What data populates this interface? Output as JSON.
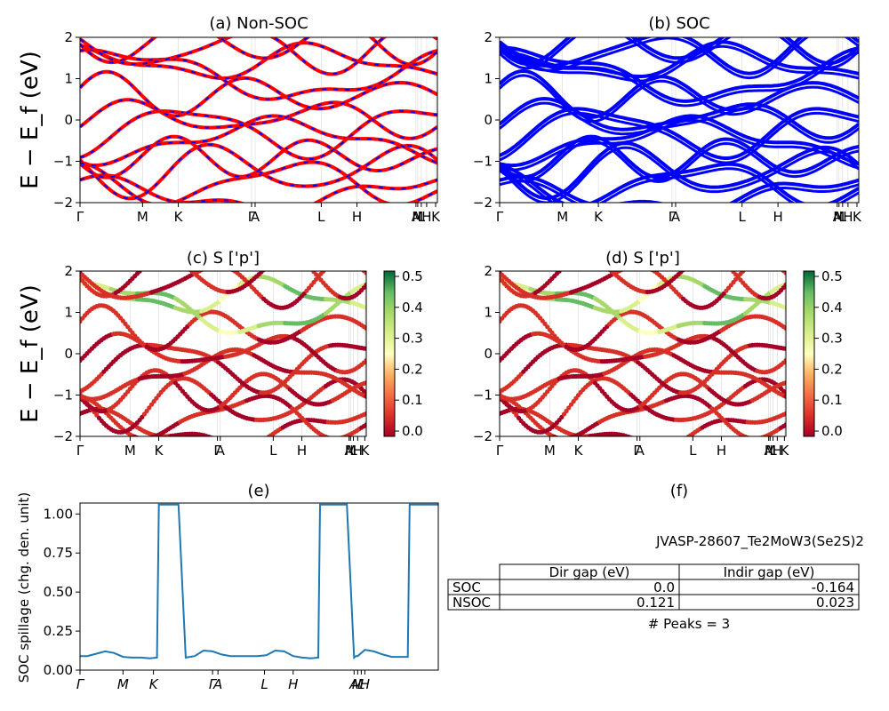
{
  "figure_id": "JVASP-28607_Te2MoW3(Se2S)2",
  "chart_data": [
    {
      "type": "line",
      "title": "(a) Non-SOC",
      "ylabel": "E − E_f (eV)",
      "ylim": [
        -2,
        2
      ],
      "yticks": [
        "2",
        "1",
        "0",
        "−1",
        "−2"
      ],
      "xticks": [
        "Γ",
        "M",
        "K",
        "Γ",
        "A",
        "L",
        "H",
        "A",
        "M",
        "L",
        "H",
        "K"
      ],
      "series_colors": [
        "#ff0000",
        "#0000ff"
      ],
      "note_series": [
        "spin-up (red)",
        "spin-down (blue dashed)"
      ]
    },
    {
      "type": "line",
      "title": "(b) SOC",
      "ylim": [
        -2,
        2
      ],
      "yticks": [
        "2",
        "1",
        "0",
        "−1",
        "−2"
      ],
      "xticks": [
        "Γ",
        "M",
        "K",
        "Γ",
        "A",
        "L",
        "H",
        "A",
        "M",
        "L",
        "H",
        "K"
      ],
      "series_colors": [
        "#0000ff"
      ]
    },
    {
      "type": "scatter",
      "title": "(c)  S ['p']",
      "ylabel": "E − E_f (eV)",
      "ylim": [
        -2,
        2
      ],
      "yticks": [
        "2",
        "1",
        "0",
        "−1",
        "−2"
      ],
      "xticks": [
        "Γ",
        "M",
        "K",
        "Γ",
        "A",
        "L",
        "H",
        "A",
        "M",
        "L",
        "H",
        "K"
      ],
      "colorbar": {
        "min": 0.0,
        "max": 0.5,
        "ticks": [
          "0.5",
          "0.4",
          "0.3",
          "0.2",
          "0.1",
          "0.0"
        ],
        "colormap": "RdYlGn"
      }
    },
    {
      "type": "scatter",
      "title": "(d) S ['p']",
      "ylim": [
        -2,
        2
      ],
      "yticks": [
        "2",
        "1",
        "0",
        "−1",
        "−2"
      ],
      "xticks": [
        "Γ",
        "M",
        "K",
        "Γ",
        "A",
        "L",
        "H",
        "A",
        "M",
        "L",
        "H",
        "K"
      ],
      "colorbar": {
        "min": 0.0,
        "max": 0.5,
        "ticks": [
          "0.5",
          "0.4",
          "0.3",
          "0.2",
          "0.1",
          "0.0"
        ],
        "colormap": "RdYlGn"
      }
    },
    {
      "type": "line",
      "title": "(e)",
      "ylabel": "SOC spillage (chg. den. unit)",
      "ylim": [
        0,
        1.07
      ],
      "yticks": [
        "1.00",
        "0.75",
        "0.50",
        "0.25",
        "0.00"
      ],
      "xticks": [
        "Γ",
        "M",
        "K",
        "Γ",
        "A",
        "L",
        "H",
        "A",
        "M",
        "L",
        "H"
      ],
      "series": [
        {
          "color": "#1f77b4",
          "x": [
            0,
            8,
            18,
            28,
            38,
            48,
            58,
            68,
            78,
            86,
            88,
            90,
            98,
            110,
            118,
            128,
            138,
            148,
            158,
            168,
            178,
            188,
            198,
            208,
            218,
            228,
            238,
            248,
            258,
            266,
            268,
            270,
            278,
            288,
            298,
            306,
            308,
            310,
            318,
            328,
            338,
            348,
            358,
            366,
            368,
            370,
            380,
            388,
            390,
            392,
            400
          ],
          "values": [
            0.09,
            0.09,
            0.105,
            0.12,
            0.11,
            0.085,
            0.08,
            0.08,
            0.075,
            0.08,
            1.06,
            1.06,
            1.06,
            1.06,
            0.08,
            0.09,
            0.125,
            0.12,
            0.1,
            0.09,
            0.09,
            0.09,
            0.09,
            0.095,
            0.125,
            0.12,
            0.09,
            0.08,
            0.075,
            0.08,
            1.06,
            1.06,
            1.06,
            1.06,
            1.06,
            0.08,
            0.09,
            0.09,
            0.13,
            0.12,
            0.1,
            0.085,
            0.085,
            0.085,
            1.06,
            1.06,
            1.06,
            1.06,
            1.06,
            1.06,
            1.06
          ]
        }
      ]
    }
  ],
  "panel_f": {
    "title": "(f)",
    "figure_label": "JVASP-28607_Te2MoW3(Se2S)2",
    "columns": [
      "",
      "Dir gap (eV)",
      "Indir gap (eV)"
    ],
    "rows": [
      [
        "SOC",
        "0.0",
        "-0.164"
      ],
      [
        "NSOC",
        "0.121",
        "0.023"
      ]
    ],
    "peaks": "# Peaks = 3"
  }
}
